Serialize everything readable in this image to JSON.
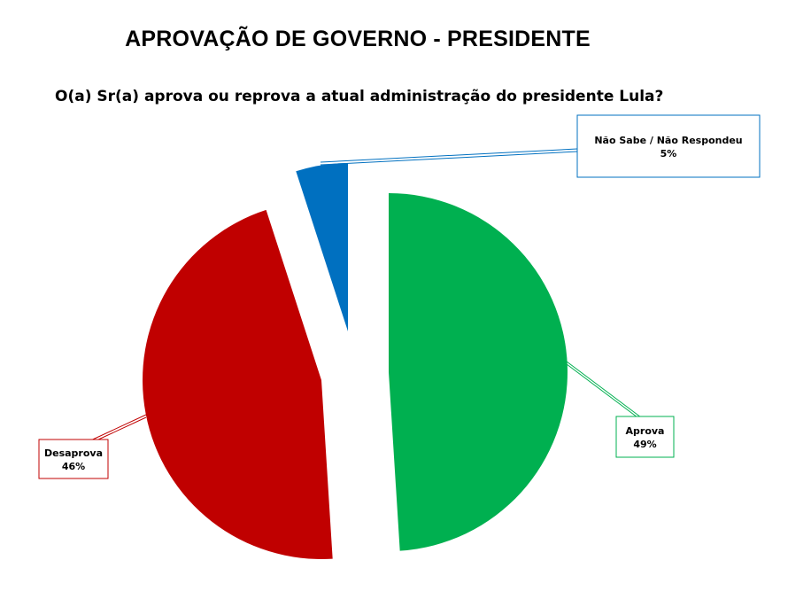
{
  "header": {
    "title": "APROVAÇÃO DE GOVERNO - PRESIDENTE",
    "question": "O(a) Sr(a) aprova ou reprova a atual administração do presidente Lula?"
  },
  "chart_data": {
    "type": "pie",
    "exploded": true,
    "legend": "none",
    "slices": [
      {
        "name": "Aprova",
        "value": 49,
        "label": "49%",
        "color": "#00B050"
      },
      {
        "name": "Desaprova",
        "value": 46,
        "label": "46%",
        "color": "#C00000"
      },
      {
        "name": "Não Sabe / Não Respondeu",
        "value": 5,
        "label": "5%",
        "color": "#0070C0"
      }
    ]
  }
}
